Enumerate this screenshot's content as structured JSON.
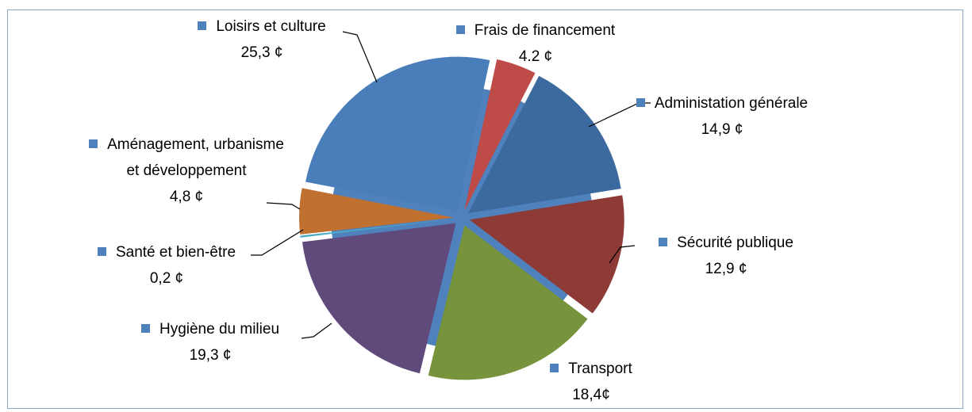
{
  "chart_data": {
    "type": "pie",
    "categories": [
      "Loisirs et culture",
      "Frais de financement",
      "Administation générale",
      "Sécurité publique",
      "Transport",
      "Hygiène du milieu",
      "Santé et bien-être",
      "Aménagement, urbanisme et développement"
    ],
    "values": [
      25.3,
      4.2,
      14.9,
      12.9,
      18.4,
      19.3,
      0.2,
      4.8
    ],
    "value_labels": [
      "25,3 ¢",
      "4.2 ¢",
      "14,9 ¢",
      "12,9 ¢",
      "18,4¢",
      "19,3 ¢",
      "0,2 ¢",
      "4,8 ¢"
    ],
    "colors": [
      "#4a7ebb",
      "#be4b48",
      "#3d6a9e",
      "#8e3a37",
      "#77933c",
      "#604a7b",
      "#4bacc6",
      "#c0702f"
    ]
  }
}
